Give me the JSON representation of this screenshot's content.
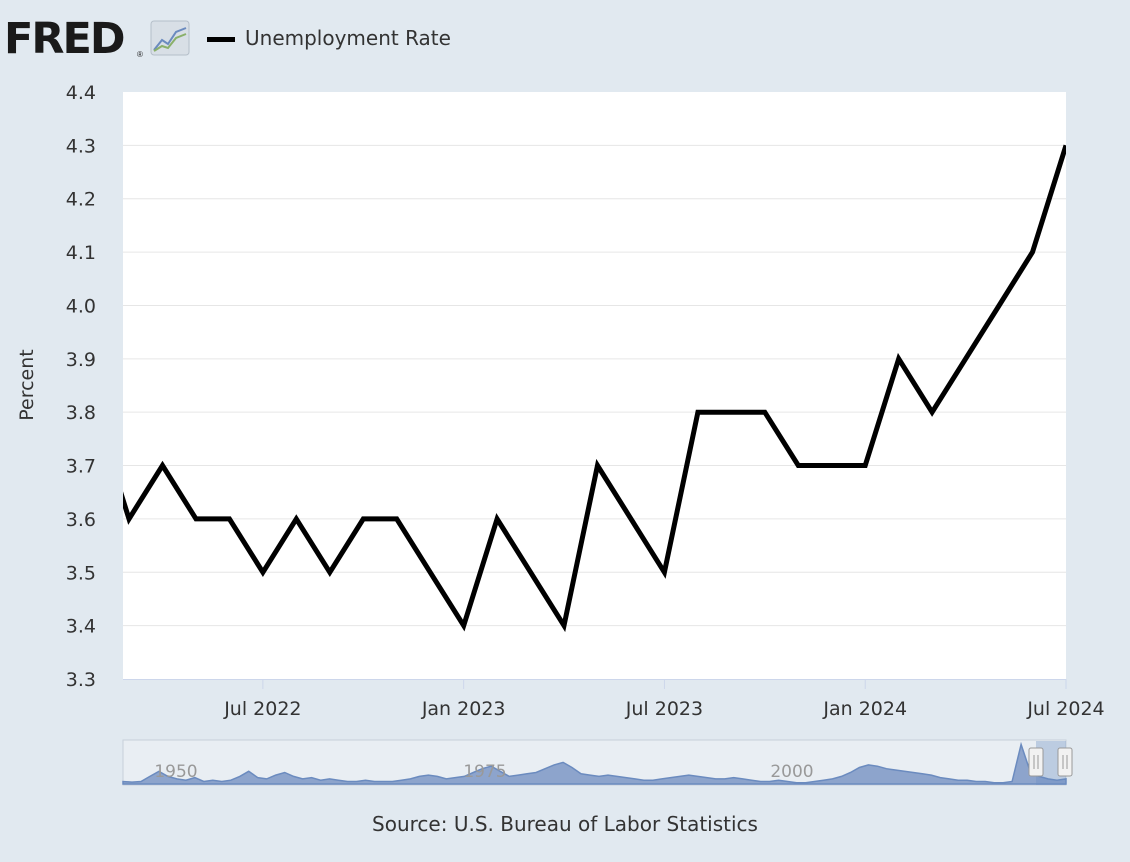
{
  "header": {
    "logo_text": "FRED",
    "logo_reg": "®",
    "legend_label": "Unemployment Rate"
  },
  "colors": {
    "background": "#e1e9f0",
    "plot_background": "#ffffff",
    "line": "#000000",
    "grid": "#e6e6e6",
    "navigator_fill": "#6b8bbf"
  },
  "chart_data": {
    "type": "line",
    "title": "",
    "xlabel": "",
    "ylabel": "Percent",
    "ylim": [
      3.3,
      4.4
    ],
    "yticks": [
      3.3,
      3.4,
      3.5,
      3.6,
      3.7,
      3.8,
      3.9,
      4.0,
      4.1,
      4.2,
      4.3,
      4.4
    ],
    "ytick_labels": [
      "3.3",
      "3.4",
      "3.5",
      "3.6",
      "3.7",
      "3.8",
      "3.9",
      "4.0",
      "4.1",
      "4.2",
      "4.3",
      "4.4"
    ],
    "xticks": [
      "Jul 2022",
      "Jan 2023",
      "Jul 2023",
      "Jan 2024",
      "Jul 2024"
    ],
    "grid": true,
    "legend_position": "top-left",
    "series": [
      {
        "name": "Unemployment Rate",
        "x": [
          "2022-03",
          "2022-04",
          "2022-05",
          "2022-06",
          "2022-07",
          "2022-08",
          "2022-09",
          "2022-10",
          "2022-11",
          "2022-12",
          "2023-01",
          "2023-02",
          "2023-03",
          "2023-04",
          "2023-05",
          "2023-06",
          "2023-07",
          "2023-08",
          "2023-09",
          "2023-10",
          "2023-11",
          "2023-12",
          "2024-01",
          "2024-02",
          "2024-03",
          "2024-04",
          "2024-05",
          "2024-06",
          "2024-07"
        ],
        "values": [
          3.6,
          3.7,
          3.6,
          3.6,
          3.5,
          3.6,
          3.5,
          3.6,
          3.6,
          3.5,
          3.4,
          3.6,
          3.5,
          3.4,
          3.7,
          3.6,
          3.5,
          3.8,
          3.8,
          3.8,
          3.7,
          3.7,
          3.7,
          3.9,
          3.8,
          3.9,
          4.0,
          4.1,
          4.3
        ]
      }
    ],
    "navigator": {
      "labels": [
        "1950",
        "1975",
        "2000"
      ]
    }
  },
  "footer": {
    "source": "Source: U.S. Bureau of Labor Statistics"
  }
}
